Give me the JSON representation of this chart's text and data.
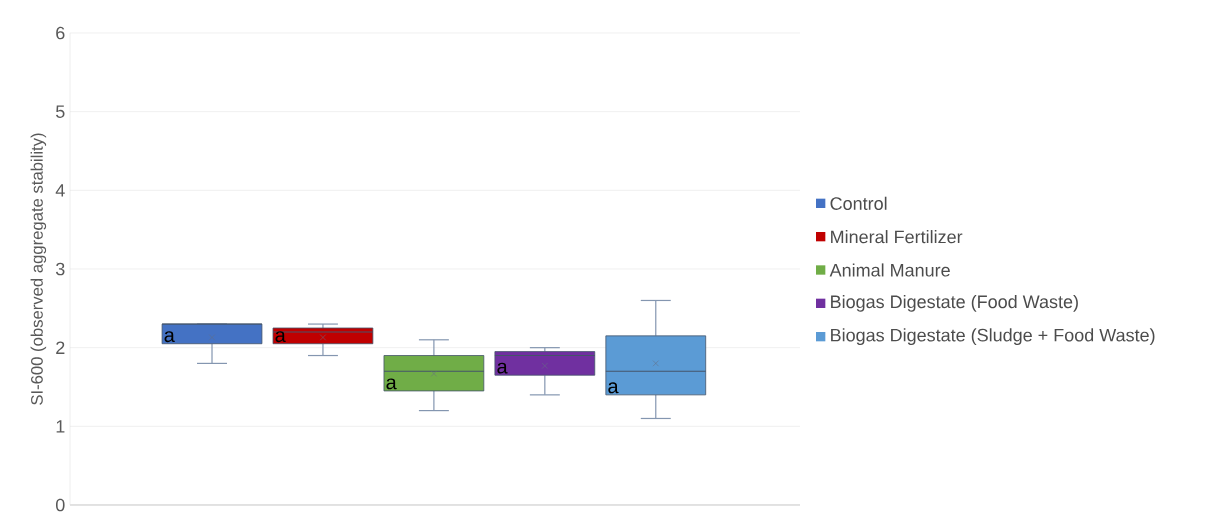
{
  "chart_data": {
    "type": "box",
    "ylabel": "SI-600 (observed aggregate stability)",
    "categories": [
      null
    ],
    "ylim": [
      0,
      6
    ],
    "yticks": [
      0,
      1,
      2,
      3,
      4,
      5,
      6
    ],
    "grid": "y",
    "legend": "right",
    "series": [
      {
        "name": "Control",
        "color": "#4472c4",
        "boxes": [
          {
            "low": 1.8,
            "q1": 2.05,
            "median": 2.3,
            "q3": 2.3,
            "high": 2.3,
            "mean": 2.13
          }
        ]
      },
      {
        "name": "Mineral Fertilizer",
        "color": "#c00000",
        "boxes": [
          {
            "low": 1.9,
            "q1": 2.05,
            "median": 2.2,
            "q3": 2.25,
            "high": 2.3,
            "mean": 2.13
          }
        ]
      },
      {
        "name": "Animal Manure",
        "color": "#70ad47",
        "boxes": [
          {
            "low": 1.2,
            "q1": 1.45,
            "median": 1.7,
            "q3": 1.9,
            "high": 2.1,
            "mean": 1.67
          }
        ]
      },
      {
        "name": "Biogas Digestate (Food Waste)",
        "color": "#7030a0",
        "boxes": [
          {
            "low": 1.4,
            "q1": 1.65,
            "median": 1.9,
            "q3": 1.95,
            "high": 2.0,
            "mean": 1.77
          }
        ]
      },
      {
        "name": "Biogas Digestate (Sludge + Food Waste)",
        "color": "#5b9bd5",
        "boxes": [
          {
            "low": 1.1,
            "q1": 1.4,
            "median": 1.7,
            "q3": 2.15,
            "high": 2.6,
            "mean": 1.8
          }
        ]
      }
    ],
    "annotations": [
      "a",
      "a",
      "a",
      "a",
      "a"
    ]
  }
}
